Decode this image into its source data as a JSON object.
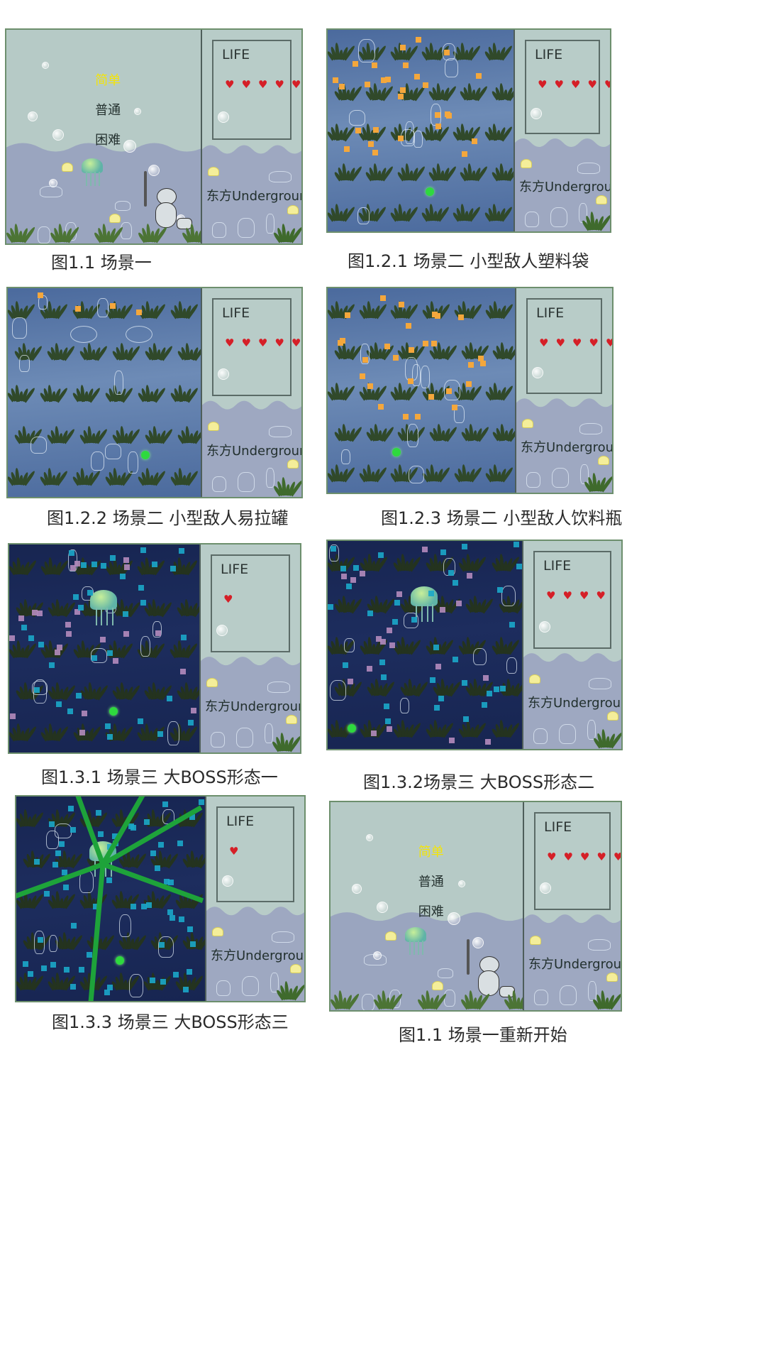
{
  "colors": {
    "sidebar_bg": "#b8ccc8",
    "sidebar_wave": "#9ea8c1",
    "scene1_top": "#b6cac6",
    "scene1_bottom": "#9aa5bf",
    "scene2_water": "#4b6a9d",
    "scene3_water": "#172551",
    "heart": "#d51f27",
    "menu_selected": "#f3e40a",
    "enemy_orange": "#f4a73c",
    "bullet_pink": "#b48bbd",
    "bullet_cyan": "#1ba7c9",
    "laser_green": "#1ea33a",
    "player_green": "#2ed93e"
  },
  "sidebar": {
    "life_label": "LIFE",
    "title": "东方Underground"
  },
  "menu": {
    "easy": "简单",
    "normal": "普通",
    "hard": "困难"
  },
  "panels": [
    {
      "id": "p1",
      "scene": "title",
      "hearts": 5,
      "caption": "图1.1 场景一"
    },
    {
      "id": "p2",
      "scene": "blue",
      "hearts": 5,
      "caption": "图1.2.1 场景二 小型敌人塑料袋"
    },
    {
      "id": "p3",
      "scene": "blue",
      "hearts": 5,
      "caption": "图1.2.2 场景二 小型敌人易拉罐"
    },
    {
      "id": "p4",
      "scene": "blue",
      "hearts": 5,
      "caption": "图1.2.3 场景二 小型敌人饮料瓶"
    },
    {
      "id": "p5",
      "scene": "dark",
      "hearts": 1,
      "caption": "图1.3.1 场景三 大BOSS形态一"
    },
    {
      "id": "p6",
      "scene": "dark",
      "hearts": 4,
      "caption": "图1.3.2场景三 大BOSS形态二"
    },
    {
      "id": "p7",
      "scene": "dark",
      "hearts": 1,
      "caption": "图1.3.3 场景三 大BOSS形态三"
    },
    {
      "id": "p8",
      "scene": "title",
      "hearts": 5,
      "caption": "图1.1 场景一重新开始"
    }
  ]
}
